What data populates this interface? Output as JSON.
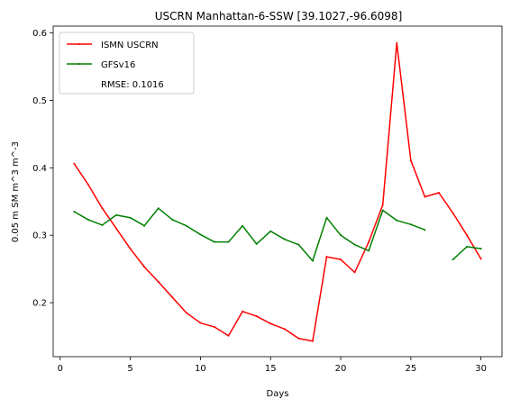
{
  "chart_data": {
    "type": "line",
    "title": "USCRN Manhattan-6-SSW [39.1027,-96.6098]",
    "xlabel": "Days",
    "ylabel": "0.05 m SM m^3 m^-3",
    "xlim": [
      -0.5,
      31.5
    ],
    "ylim": [
      0.12,
      0.61
    ],
    "xticks": [
      0,
      5,
      10,
      15,
      20,
      25,
      30
    ],
    "yticks": [
      0.2,
      0.3,
      0.4,
      0.5,
      0.6
    ],
    "grid": false,
    "legend_position": "top-left",
    "series": [
      {
        "name": "ISMN USCRN",
        "color": "#ff0000",
        "x": [
          1,
          2,
          3,
          4,
          5,
          6,
          7,
          8,
          9,
          10,
          11,
          12,
          13,
          14,
          15,
          16,
          17,
          18,
          19,
          20,
          21,
          22,
          23,
          24,
          25,
          26,
          27,
          28,
          29,
          30
        ],
        "y": [
          0.406,
          0.375,
          0.34,
          0.31,
          0.28,
          0.253,
          0.231,
          0.208,
          0.185,
          0.17,
          0.164,
          0.151,
          0.187,
          0.18,
          0.169,
          0.161,
          0.147,
          0.143,
          0.268,
          0.264,
          0.245,
          0.29,
          0.345,
          0.585,
          0.411,
          0.357,
          0.363,
          0.333,
          0.3,
          0.265
        ]
      },
      {
        "name": "GFSv16",
        "color": "#008000",
        "x": [
          1,
          2,
          3,
          4,
          5,
          6,
          7,
          8,
          9,
          10,
          11,
          12,
          13,
          14,
          15,
          16,
          17,
          18,
          19,
          20,
          21,
          22,
          23,
          24,
          25,
          26,
          27,
          28,
          29,
          30
        ],
        "y": [
          0.335,
          0.323,
          0.315,
          0.33,
          0.326,
          0.314,
          0.34,
          0.323,
          0.314,
          0.301,
          0.29,
          0.29,
          0.314,
          0.287,
          0.306,
          0.294,
          0.286,
          0.262,
          0.326,
          0.3,
          0.286,
          0.277,
          0.337,
          0.322,
          0.316,
          0.308,
          null,
          0.264,
          0.283,
          0.28
        ]
      }
    ],
    "annotations": [
      "RMSE: 0.1016"
    ]
  }
}
